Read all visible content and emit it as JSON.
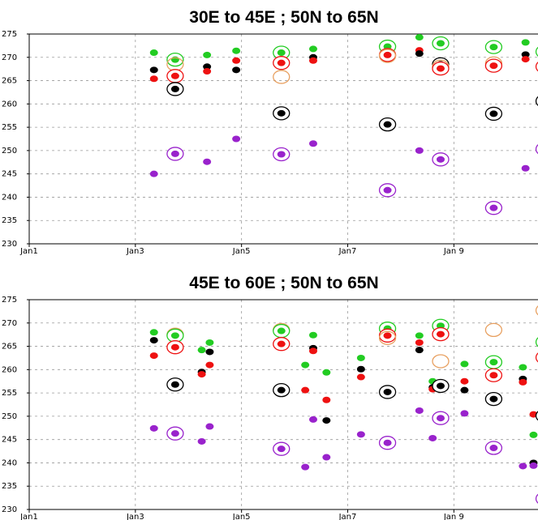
{
  "colors": {
    "green": "#22cc22",
    "black": "#000000",
    "red": "#ee1111",
    "purple": "#9922cc",
    "orange": "#e8a060",
    "grid": "#9a9a9a"
  },
  "chart_data": [
    {
      "type": "scatter",
      "title": "30E  to 45E ;  50N to 65N",
      "xlabel": "",
      "ylabel": "",
      "x_range": [
        1,
        10.6
      ],
      "ylim": [
        230,
        275
      ],
      "y_ticks": [
        230,
        235,
        240,
        245,
        250,
        255,
        260,
        265,
        270,
        275
      ],
      "x_ticks": [
        {
          "value": 1,
          "label": "Jan1"
        },
        {
          "value": 3,
          "label": "Jan3"
        },
        {
          "value": 5,
          "label": "Jan5"
        },
        {
          "value": 7,
          "label": "Jan7"
        },
        {
          "value": 9,
          "label": "Jan 9"
        }
      ],
      "grid": true,
      "points": [
        {
          "x": 3.35,
          "y": 271.0,
          "color": "green",
          "ring": false
        },
        {
          "x": 3.35,
          "y": 267.3,
          "color": "black",
          "ring": false
        },
        {
          "x": 3.35,
          "y": 265.4,
          "color": "red",
          "ring": false
        },
        {
          "x": 3.35,
          "y": 245.0,
          "color": "purple",
          "ring": false
        },
        {
          "x": 3.75,
          "y": 269.5,
          "color": "green",
          "ring": true
        },
        {
          "x": 3.75,
          "y": 268.5,
          "color": "orange",
          "ring": true
        },
        {
          "x": 3.75,
          "y": 266.0,
          "color": "red",
          "ring": true
        },
        {
          "x": 3.75,
          "y": 263.2,
          "color": "black",
          "ring": true
        },
        {
          "x": 3.75,
          "y": 249.3,
          "color": "purple",
          "ring": true
        },
        {
          "x": 4.35,
          "y": 270.5,
          "color": "green",
          "ring": false
        },
        {
          "x": 4.35,
          "y": 268.0,
          "color": "black",
          "ring": false
        },
        {
          "x": 4.35,
          "y": 267.0,
          "color": "red",
          "ring": false
        },
        {
          "x": 4.35,
          "y": 247.6,
          "color": "purple",
          "ring": false
        },
        {
          "x": 4.9,
          "y": 271.4,
          "color": "green",
          "ring": false
        },
        {
          "x": 4.9,
          "y": 269.3,
          "color": "red",
          "ring": false
        },
        {
          "x": 4.9,
          "y": 267.3,
          "color": "black",
          "ring": false
        },
        {
          "x": 4.9,
          "y": 252.5,
          "color": "purple",
          "ring": false
        },
        {
          "x": 5.75,
          "y": 271.0,
          "color": "green",
          "ring": true
        },
        {
          "x": 5.75,
          "y": 268.8,
          "color": "red",
          "ring": true
        },
        {
          "x": 5.75,
          "y": 265.8,
          "color": "orange",
          "ring": true
        },
        {
          "x": 5.75,
          "y": 258.0,
          "color": "black",
          "ring": true
        },
        {
          "x": 5.75,
          "y": 249.2,
          "color": "purple",
          "ring": true
        },
        {
          "x": 6.35,
          "y": 271.8,
          "color": "green",
          "ring": false
        },
        {
          "x": 6.35,
          "y": 270.0,
          "color": "black",
          "ring": false
        },
        {
          "x": 6.35,
          "y": 269.3,
          "color": "red",
          "ring": false
        },
        {
          "x": 6.35,
          "y": 251.5,
          "color": "purple",
          "ring": false
        },
        {
          "x": 7.75,
          "y": 272.3,
          "color": "green",
          "ring": true
        },
        {
          "x": 7.75,
          "y": 270.5,
          "color": "red",
          "ring": true
        },
        {
          "x": 7.75,
          "y": 270.3,
          "color": "orange",
          "ring": true
        },
        {
          "x": 7.75,
          "y": 255.6,
          "color": "black",
          "ring": true
        },
        {
          "x": 7.75,
          "y": 241.5,
          "color": "purple",
          "ring": true
        },
        {
          "x": 8.35,
          "y": 274.3,
          "color": "green",
          "ring": false
        },
        {
          "x": 8.35,
          "y": 271.5,
          "color": "red",
          "ring": false
        },
        {
          "x": 8.35,
          "y": 270.8,
          "color": "black",
          "ring": false
        },
        {
          "x": 8.35,
          "y": 250.0,
          "color": "purple",
          "ring": false
        },
        {
          "x": 8.75,
          "y": 273.0,
          "color": "green",
          "ring": true
        },
        {
          "x": 8.75,
          "y": 268.5,
          "color": "black",
          "ring": true
        },
        {
          "x": 8.75,
          "y": 268.0,
          "color": "orange",
          "ring": true
        },
        {
          "x": 8.75,
          "y": 267.6,
          "color": "red",
          "ring": true
        },
        {
          "x": 8.75,
          "y": 248.1,
          "color": "purple",
          "ring": true
        },
        {
          "x": 9.75,
          "y": 272.2,
          "color": "green",
          "ring": true
        },
        {
          "x": 9.75,
          "y": 268.7,
          "color": "orange",
          "ring": true
        },
        {
          "x": 9.75,
          "y": 268.2,
          "color": "red",
          "ring": true
        },
        {
          "x": 9.75,
          "y": 257.9,
          "color": "black",
          "ring": true
        },
        {
          "x": 9.75,
          "y": 237.7,
          "color": "purple",
          "ring": true
        },
        {
          "x": 10.35,
          "y": 273.2,
          "color": "green",
          "ring": false
        },
        {
          "x": 10.35,
          "y": 270.6,
          "color": "black",
          "ring": false
        },
        {
          "x": 10.35,
          "y": 269.6,
          "color": "red",
          "ring": false
        },
        {
          "x": 10.35,
          "y": 246.2,
          "color": "purple",
          "ring": false
        },
        {
          "x": 10.7,
          "y": 271.2,
          "color": "green",
          "ring": true
        },
        {
          "x": 10.7,
          "y": 268.0,
          "color": "red",
          "ring": true
        },
        {
          "x": 10.7,
          "y": 260.6,
          "color": "black",
          "ring": true
        },
        {
          "x": 10.7,
          "y": 250.3,
          "color": "purple",
          "ring": true
        }
      ]
    },
    {
      "type": "scatter",
      "title": "45E  to 60E ;  50N to 65N",
      "xlabel": "",
      "ylabel": "",
      "x_range": [
        1,
        10.6
      ],
      "ylim": [
        230,
        275
      ],
      "y_ticks": [
        230,
        235,
        240,
        245,
        250,
        255,
        260,
        265,
        270,
        275
      ],
      "x_ticks": [
        {
          "value": 1,
          "label": "Jan1"
        },
        {
          "value": 3,
          "label": "Jan3"
        },
        {
          "value": 5,
          "label": "Jan5"
        },
        {
          "value": 7,
          "label": "Jan7"
        },
        {
          "value": 9,
          "label": "Jan 9"
        }
      ],
      "grid": true,
      "points": [
        {
          "x": 3.35,
          "y": 268.0,
          "color": "green",
          "ring": false
        },
        {
          "x": 3.35,
          "y": 266.3,
          "color": "black",
          "ring": false
        },
        {
          "x": 3.35,
          "y": 263.0,
          "color": "red",
          "ring": false
        },
        {
          "x": 3.35,
          "y": 247.4,
          "color": "purple",
          "ring": false
        },
        {
          "x": 3.75,
          "y": 267.5,
          "color": "orange",
          "ring": true
        },
        {
          "x": 3.75,
          "y": 267.3,
          "color": "green",
          "ring": true
        },
        {
          "x": 3.75,
          "y": 264.8,
          "color": "red",
          "ring": true
        },
        {
          "x": 3.75,
          "y": 256.8,
          "color": "black",
          "ring": true
        },
        {
          "x": 3.75,
          "y": 246.3,
          "color": "purple",
          "ring": true
        },
        {
          "x": 4.25,
          "y": 264.2,
          "color": "green",
          "ring": false
        },
        {
          "x": 4.25,
          "y": 259.5,
          "color": "black",
          "ring": false
        },
        {
          "x": 4.25,
          "y": 259.0,
          "color": "red",
          "ring": false
        },
        {
          "x": 4.25,
          "y": 244.6,
          "color": "purple",
          "ring": false
        },
        {
          "x": 4.4,
          "y": 265.8,
          "color": "green",
          "ring": false
        },
        {
          "x": 4.4,
          "y": 263.8,
          "color": "black",
          "ring": false
        },
        {
          "x": 4.4,
          "y": 261.0,
          "color": "red",
          "ring": false
        },
        {
          "x": 4.4,
          "y": 247.8,
          "color": "purple",
          "ring": false
        },
        {
          "x": 5.75,
          "y": 268.5,
          "color": "orange",
          "ring": true
        },
        {
          "x": 5.75,
          "y": 268.3,
          "color": "green",
          "ring": true
        },
        {
          "x": 5.75,
          "y": 265.5,
          "color": "red",
          "ring": true
        },
        {
          "x": 5.75,
          "y": 255.6,
          "color": "black",
          "ring": true
        },
        {
          "x": 5.75,
          "y": 243.0,
          "color": "purple",
          "ring": true
        },
        {
          "x": 6.2,
          "y": 261.0,
          "color": "green",
          "ring": false
        },
        {
          "x": 6.2,
          "y": 255.6,
          "color": "red",
          "ring": false
        },
        {
          "x": 6.2,
          "y": 239.1,
          "color": "purple",
          "ring": false
        },
        {
          "x": 6.35,
          "y": 267.4,
          "color": "green",
          "ring": false
        },
        {
          "x": 6.35,
          "y": 264.6,
          "color": "black",
          "ring": false
        },
        {
          "x": 6.35,
          "y": 264.0,
          "color": "red",
          "ring": false
        },
        {
          "x": 6.35,
          "y": 249.3,
          "color": "purple",
          "ring": false
        },
        {
          "x": 6.6,
          "y": 259.4,
          "color": "green",
          "ring": false
        },
        {
          "x": 6.6,
          "y": 253.5,
          "color": "red",
          "ring": false
        },
        {
          "x": 6.6,
          "y": 249.1,
          "color": "black",
          "ring": false
        },
        {
          "x": 6.6,
          "y": 241.2,
          "color": "purple",
          "ring": false
        },
        {
          "x": 7.25,
          "y": 262.5,
          "color": "green",
          "ring": false
        },
        {
          "x": 7.25,
          "y": 260.1,
          "color": "black",
          "ring": false
        },
        {
          "x": 7.25,
          "y": 258.4,
          "color": "red",
          "ring": false
        },
        {
          "x": 7.25,
          "y": 246.1,
          "color": "purple",
          "ring": false
        },
        {
          "x": 7.75,
          "y": 268.8,
          "color": "green",
          "ring": true
        },
        {
          "x": 7.75,
          "y": 267.3,
          "color": "red",
          "ring": true
        },
        {
          "x": 7.75,
          "y": 266.8,
          "color": "orange",
          "ring": true
        },
        {
          "x": 7.75,
          "y": 255.2,
          "color": "black",
          "ring": true
        },
        {
          "x": 7.75,
          "y": 244.3,
          "color": "purple",
          "ring": true
        },
        {
          "x": 8.35,
          "y": 267.3,
          "color": "green",
          "ring": false
        },
        {
          "x": 8.35,
          "y": 265.8,
          "color": "red",
          "ring": false
        },
        {
          "x": 8.35,
          "y": 264.2,
          "color": "black",
          "ring": false
        },
        {
          "x": 8.35,
          "y": 251.2,
          "color": "purple",
          "ring": false
        },
        {
          "x": 8.6,
          "y": 257.5,
          "color": "green",
          "ring": false
        },
        {
          "x": 8.6,
          "y": 256.2,
          "color": "black",
          "ring": false
        },
        {
          "x": 8.6,
          "y": 255.8,
          "color": "red",
          "ring": false
        },
        {
          "x": 8.6,
          "y": 245.3,
          "color": "purple",
          "ring": false
        },
        {
          "x": 8.75,
          "y": 269.4,
          "color": "green",
          "ring": true
        },
        {
          "x": 8.75,
          "y": 267.6,
          "color": "red",
          "ring": true
        },
        {
          "x": 8.75,
          "y": 261.8,
          "color": "orange",
          "ring": true
        },
        {
          "x": 8.75,
          "y": 256.5,
          "color": "black",
          "ring": true
        },
        {
          "x": 8.75,
          "y": 249.6,
          "color": "purple",
          "ring": true
        },
        {
          "x": 9.2,
          "y": 261.2,
          "color": "green",
          "ring": false
        },
        {
          "x": 9.2,
          "y": 257.5,
          "color": "red",
          "ring": false
        },
        {
          "x": 9.2,
          "y": 255.6,
          "color": "black",
          "ring": false
        },
        {
          "x": 9.2,
          "y": 250.6,
          "color": "purple",
          "ring": false
        },
        {
          "x": 9.75,
          "y": 268.5,
          "color": "orange",
          "ring": true
        },
        {
          "x": 9.75,
          "y": 261.6,
          "color": "green",
          "ring": true
        },
        {
          "x": 9.75,
          "y": 258.8,
          "color": "red",
          "ring": true
        },
        {
          "x": 9.75,
          "y": 253.7,
          "color": "black",
          "ring": true
        },
        {
          "x": 9.75,
          "y": 243.2,
          "color": "purple",
          "ring": true
        },
        {
          "x": 10.3,
          "y": 260.5,
          "color": "green",
          "ring": false
        },
        {
          "x": 10.3,
          "y": 258.0,
          "color": "black",
          "ring": false
        },
        {
          "x": 10.3,
          "y": 257.3,
          "color": "red",
          "ring": false
        },
        {
          "x": 10.3,
          "y": 239.3,
          "color": "purple",
          "ring": false
        },
        {
          "x": 10.5,
          "y": 250.4,
          "color": "red",
          "ring": false
        },
        {
          "x": 10.5,
          "y": 246.0,
          "color": "green",
          "ring": false
        },
        {
          "x": 10.5,
          "y": 240.0,
          "color": "black",
          "ring": false
        },
        {
          "x": 10.5,
          "y": 239.4,
          "color": "purple",
          "ring": false
        },
        {
          "x": 10.7,
          "y": 272.7,
          "color": "orange",
          "ring": true
        },
        {
          "x": 10.7,
          "y": 265.9,
          "color": "green",
          "ring": true
        },
        {
          "x": 10.7,
          "y": 262.6,
          "color": "red",
          "ring": true
        },
        {
          "x": 10.7,
          "y": 250.1,
          "color": "black",
          "ring": true
        },
        {
          "x": 10.7,
          "y": 232.3,
          "color": "purple",
          "ring": true
        }
      ]
    }
  ]
}
